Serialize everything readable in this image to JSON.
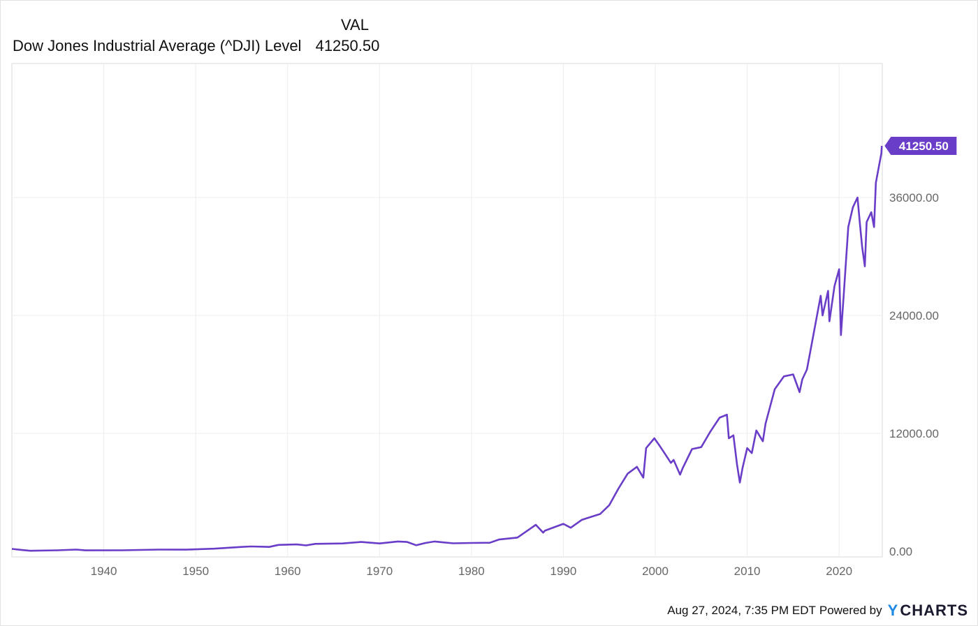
{
  "legend": {
    "column_header": "VAL",
    "series_label": "Dow Jones Industrial Average (^DJI) Level",
    "series_value": "41250.50"
  },
  "footer": {
    "timestamp": "Aug 27, 2024, 7:35 PM EDT",
    "powered_by": "Powered by",
    "brand_mark": "Y",
    "brand_text": "CHARTS"
  },
  "colors": {
    "series": "#6a3dc8",
    "grid": "#ececec",
    "brand_accent": "#1e88e5"
  },
  "chart_data": {
    "type": "line",
    "title": "",
    "xlabel": "",
    "ylabel": "",
    "x_ticks": [
      "1940",
      "1950",
      "1960",
      "1970",
      "1980",
      "1990",
      "2000",
      "2010",
      "2020"
    ],
    "y_ticks": [
      "0.00",
      "12000.00",
      "24000.00",
      "36000.00"
    ],
    "xlim": [
      1930,
      2024.7
    ],
    "ylim": [
      0,
      48000
    ],
    "grid": true,
    "last_value_label": "41250.50",
    "series": [
      {
        "name": "Dow Jones Industrial Average (^DJI) Level",
        "x": [
          1930,
          1931,
          1932,
          1935,
          1937,
          1938,
          1942,
          1946,
          1949,
          1952,
          1955,
          1956,
          1958,
          1959,
          1961,
          1962,
          1963,
          1966,
          1968,
          1970,
          1972,
          1973,
          1974,
          1975,
          1976,
          1978,
          1980,
          1982,
          1983,
          1985,
          1987,
          1987.8,
          1988,
          1990,
          1990.8,
          1992,
          1994,
          1995,
          1996,
          1997,
          1998,
          1998.7,
          1999,
          1999.9,
          2000.5,
          2001,
          2001.7,
          2002,
          2002.7,
          2003,
          2004,
          2005,
          2006,
          2007,
          2007.8,
          2008,
          2008.5,
          2008.9,
          2009.2,
          2009.5,
          2010,
          2010.5,
          2011,
          2011.7,
          2012,
          2013,
          2014,
          2015,
          2015.7,
          2016,
          2016.5,
          2017,
          2018,
          2018.2,
          2018.8,
          2018.95,
          2019.5,
          2020,
          2020.2,
          2020.5,
          2021,
          2021.5,
          2022,
          2022.3,
          2022.5,
          2022.8,
          2023,
          2023.5,
          2023.8,
          2024,
          2024.3,
          2024.6,
          2024.65
        ],
        "y": [
          250,
          150,
          60,
          110,
          180,
          100,
          110,
          180,
          170,
          270,
          450,
          500,
          450,
          650,
          700,
          600,
          760,
          800,
          950,
          800,
          1000,
          950,
          620,
          850,
          1000,
          820,
          850,
          870,
          1200,
          1400,
          2700,
          1900,
          2100,
          2800,
          2400,
          3200,
          3800,
          4700,
          6400,
          7900,
          8600,
          7500,
          10500,
          11500,
          10700,
          10000,
          9000,
          9300,
          7800,
          8500,
          10400,
          10600,
          12200,
          13600,
          13900,
          11500,
          11800,
          8800,
          7000,
          8500,
          10500,
          10000,
          12300,
          11200,
          13000,
          16500,
          17800,
          18000,
          16200,
          17500,
          18500,
          21000,
          26000,
          24000,
          26500,
          23400,
          27000,
          28700,
          22000,
          26000,
          33000,
          35000,
          36000,
          33000,
          31000,
          29000,
          33500,
          34500,
          33000,
          37500,
          39000,
          40500,
          41250.5
        ]
      }
    ]
  }
}
